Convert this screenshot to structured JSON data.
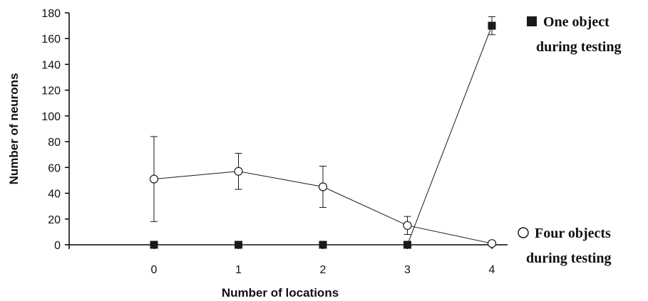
{
  "chart_data": {
    "type": "line",
    "xlabel": "Number of locations",
    "ylabel": "Number of neurons",
    "categories": [
      "0",
      "1",
      "2",
      "3",
      "4"
    ],
    "x": [
      0,
      1,
      2,
      3,
      4
    ],
    "ylim": [
      0,
      180
    ],
    "yticks": [
      "0",
      "20",
      "40",
      "60",
      "80",
      "100",
      "120",
      "140",
      "160",
      "180"
    ],
    "grid": false,
    "legend_placement": "right",
    "series": [
      {
        "legend_lines": [
          "One object",
          "during testing"
        ],
        "marker": "filled-square",
        "values": [
          0,
          0,
          0,
          0,
          170
        ],
        "error": [
          null,
          null,
          null,
          null,
          7
        ],
        "color": "#1a1a1a"
      },
      {
        "legend_lines": [
          "Four objects",
          "during testing"
        ],
        "marker": "open-circle",
        "values": [
          51,
          57,
          45,
          15,
          1
        ],
        "error": [
          33,
          14,
          16,
          7,
          null
        ],
        "color": "#1a1a1a"
      }
    ]
  }
}
